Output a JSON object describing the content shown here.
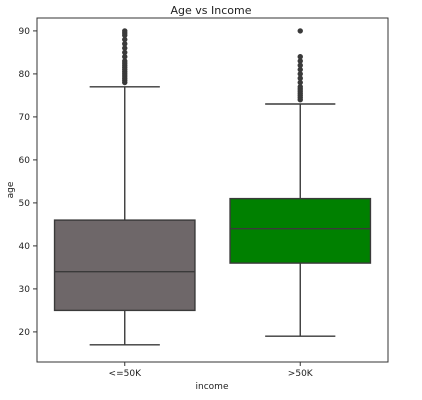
{
  "chart_data": {
    "type": "box",
    "title": "Age vs Income",
    "xlabel": "income",
    "ylabel": "age",
    "categories": [
      "<=50K",
      ">50K"
    ],
    "ylim": [
      13,
      93
    ],
    "yticks": [
      20,
      30,
      40,
      50,
      60,
      70,
      80,
      90
    ],
    "boxes": [
      {
        "category": "<=50K",
        "whisker_low": 17,
        "q1": 25,
        "median": 34,
        "q3": 46,
        "whisker_high": 77,
        "outliers": [
          78,
          78.5,
          79,
          79.5,
          80,
          80.5,
          81,
          81.5,
          82,
          82.5,
          83,
          84,
          85,
          86,
          87,
          88,
          89,
          89.5,
          90
        ],
        "color": "#6e6769"
      },
      {
        "category": ">50K",
        "whisker_low": 19,
        "q1": 36,
        "median": 44,
        "q3": 51,
        "whisker_high": 73,
        "outliers": [
          74,
          74.5,
          75,
          75.5,
          76,
          76.5,
          77,
          78,
          79,
          80,
          81,
          82,
          83,
          84,
          90
        ],
        "color": "#008000"
      }
    ],
    "grid": false,
    "legend": "none"
  }
}
